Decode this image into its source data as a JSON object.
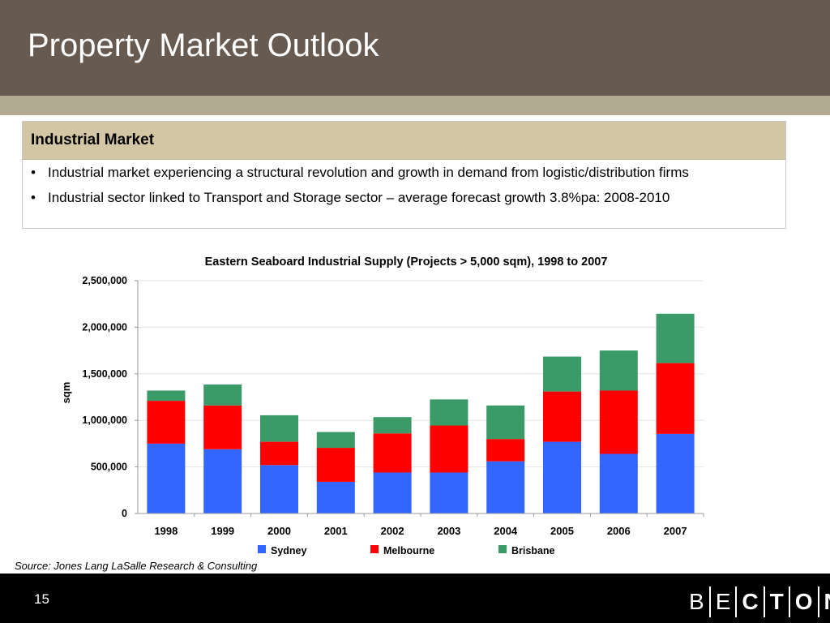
{
  "slide": {
    "title": "Property Market Outlook",
    "page_number": "15"
  },
  "info_box": {
    "heading": "Industrial Market",
    "bullet_char": "•",
    "bullets": [
      "Industrial market experiencing a structural revolution and growth in demand from logistic/distribution firms",
      "Industrial sector linked to Transport and Storage sector – average forecast growth 3.8%pa: 2008-2010"
    ]
  },
  "source": "Source: Jones Lang LaSalle Research & Consulting",
  "logo": {
    "letters": [
      "B",
      "E",
      "C",
      "T",
      "O",
      "N"
    ]
  },
  "colors": {
    "header_bg": "#675b51",
    "band": "#b3aa92",
    "box_heading_bg": "#d3c6a4",
    "sydney": "#3366ff",
    "melbourne": "#ff0000",
    "brisbane": "#3a9a68"
  },
  "chart_data": {
    "type": "bar",
    "stacked": true,
    "title": "Eastern Seaboard Industrial Supply (Projects > 5,000 sqm), 1998 to 2007",
    "xlabel": "",
    "ylabel": "sqm",
    "ylim": [
      0,
      2500000
    ],
    "yticks": [
      0,
      500000,
      1000000,
      1500000,
      2000000,
      2500000
    ],
    "ytick_labels": [
      "0",
      "500,000",
      "1,000,000",
      "1,500,000",
      "2,000,000",
      "2,500,000"
    ],
    "grid": true,
    "legend_position": "bottom",
    "categories": [
      "1998",
      "1999",
      "2000",
      "2001",
      "2002",
      "2003",
      "2004",
      "2005",
      "2006",
      "2007"
    ],
    "series": [
      {
        "name": "Sydney",
        "color": "#3366ff",
        "values": [
          750000,
          690000,
          520000,
          340000,
          440000,
          440000,
          560000,
          770000,
          640000,
          855000
        ]
      },
      {
        "name": "Melbourne",
        "color": "#ff0000",
        "values": [
          460000,
          470000,
          250000,
          365000,
          420000,
          505000,
          240000,
          540000,
          680000,
          760000
        ]
      },
      {
        "name": "Brisbane",
        "color": "#3a9a68",
        "values": [
          110000,
          225000,
          285000,
          170000,
          175000,
          280000,
          360000,
          375000,
          430000,
          530000
        ]
      }
    ]
  }
}
